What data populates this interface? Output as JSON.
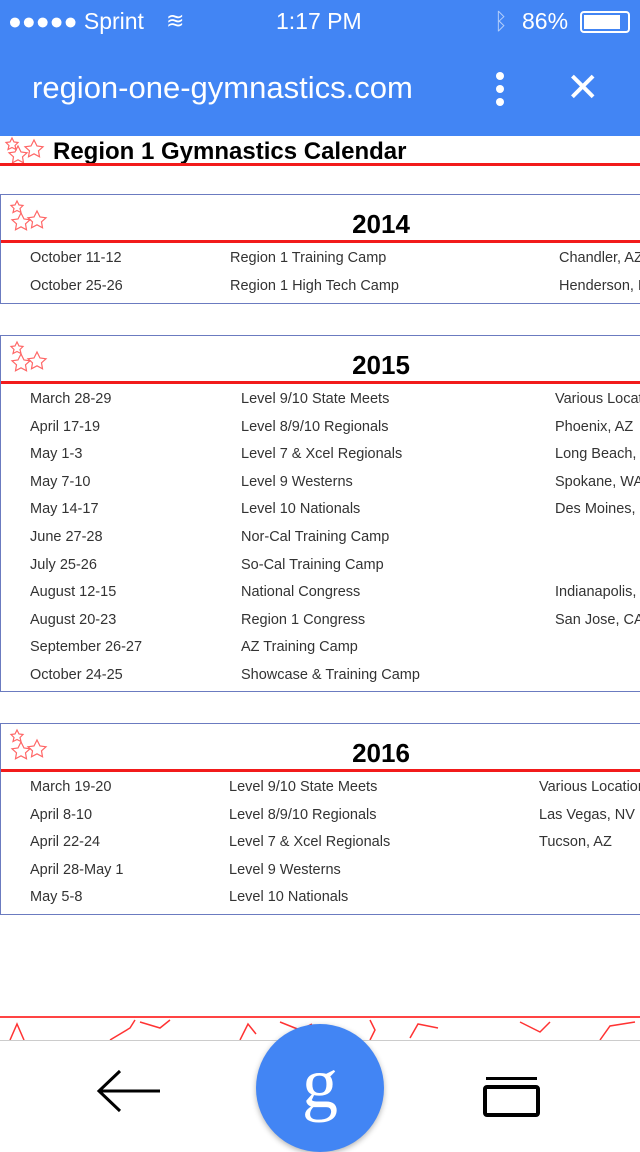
{
  "status_bar": {
    "carrier": "●●●●● Sprint",
    "time": "1:17 PM",
    "battery": "86%"
  },
  "browser": {
    "url": "region-one-gymnastics.com"
  },
  "page": {
    "title": "Region 1 Gymnastics Calendar"
  },
  "sections": [
    {
      "year": "2014",
      "rows": [
        [
          "October 11-12",
          "Region 1 Training Camp",
          "Chandler, AZ"
        ],
        [
          "October 25-26",
          "Region 1 High Tech Camp",
          "Henderson, N"
        ]
      ]
    },
    {
      "year": "2015",
      "rows": [
        [
          "March 28-29",
          "Level 9/10 State Meets",
          "Various Locat"
        ],
        [
          "April 17-19",
          "Level 8/9/10 Regionals",
          "Phoenix, AZ"
        ],
        [
          "May 1-3",
          "Level 7 & Xcel Regionals",
          "Long Beach, "
        ],
        [
          "May 7-10",
          "Level 9 Westerns",
          "Spokane, WA"
        ],
        [
          "May 14-17",
          "Level 10 Nationals",
          "Des Moines, I"
        ],
        [
          "June 27-28",
          "Nor-Cal Training Camp",
          ""
        ],
        [
          "July 25-26",
          "So-Cal Training Camp",
          ""
        ],
        [
          "August 12-15",
          "National Congress",
          "Indianapolis, I"
        ],
        [
          "August 20-23",
          "Region 1 Congress",
          "San Jose, CA"
        ],
        [
          "September 26-27",
          "AZ Training Camp",
          ""
        ],
        [
          "October 24-25",
          "Showcase & Training Camp",
          ""
        ]
      ]
    },
    {
      "year": "2016",
      "rows": [
        [
          "March 19-20",
          "Level 9/10 State Meets",
          "Various Location"
        ],
        [
          "April 8-10",
          "Level 8/9/10 Regionals",
          "Las Vegas, NV"
        ],
        [
          "April 22-24",
          "Level 7 & Xcel Regionals",
          "Tucson, AZ"
        ],
        [
          "April 28-May 1",
          "Level 9 Westerns",
          ""
        ],
        [
          "May 5-8",
          "Level 10 Nationals",
          ""
        ]
      ]
    }
  ],
  "bottom_bar": {
    "google_label": "g"
  }
}
